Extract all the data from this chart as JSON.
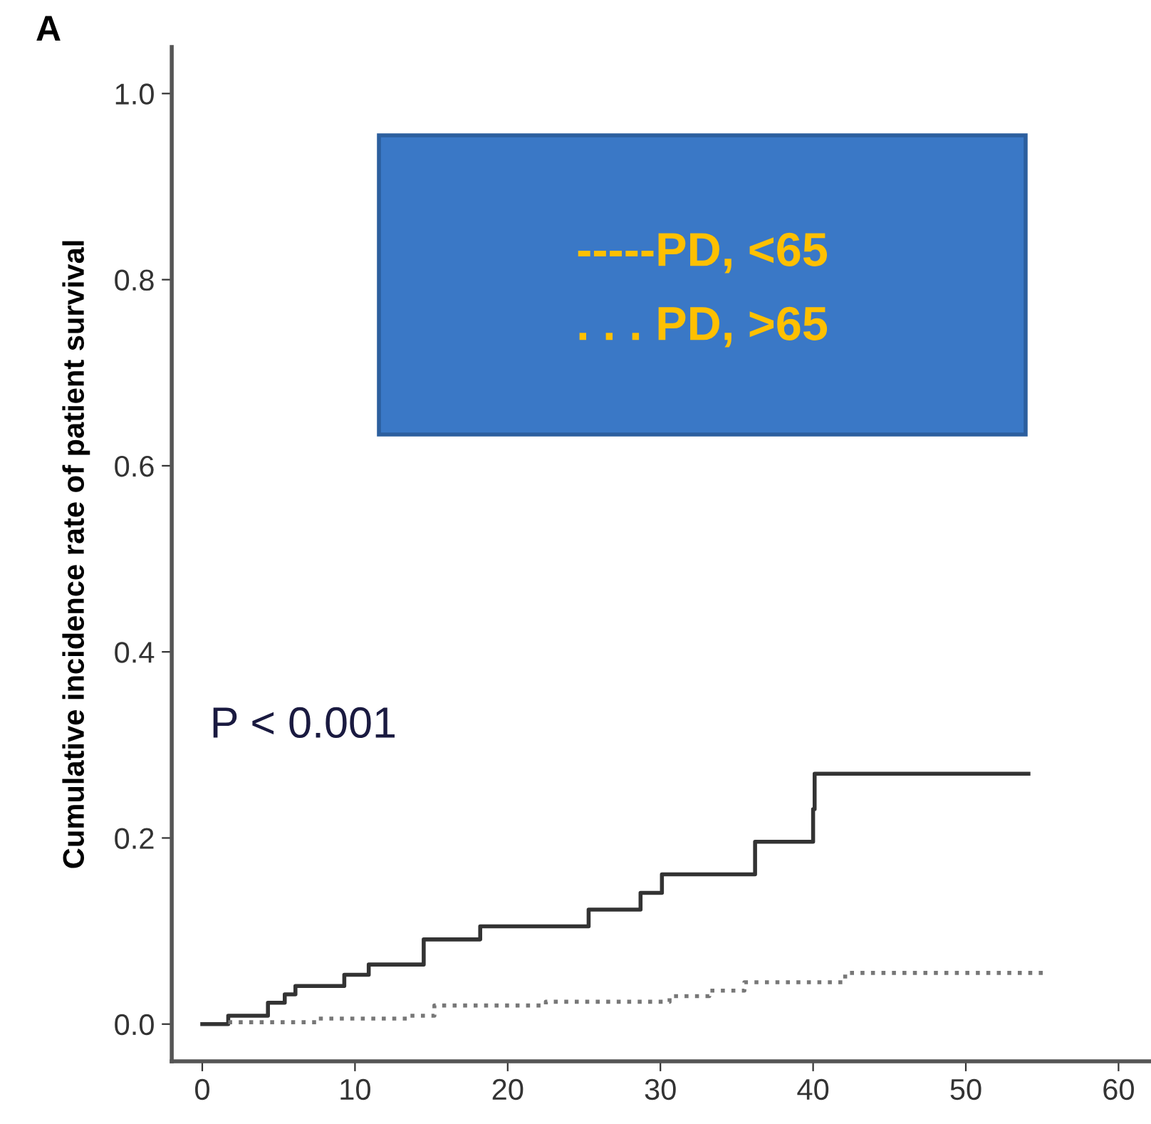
{
  "chart_data": {
    "type": "step",
    "ylabel": "Cumulative incidence rate of patient survival",
    "annotations": [
      "A",
      "P < 0.001",
      "-----PD, <65",
      ". . . PD, >65"
    ],
    "series": [
      {
        "color": "#333333",
        "line_style": "solid",
        "x": [
          0,
          1.7,
          4.3,
          5.4,
          6.1,
          9.3,
          10.9,
          14.5,
          18.2,
          25.3,
          28.7,
          30.1,
          36.2,
          40.0,
          40.1,
          54.1
        ],
        "values": [
          0,
          0.009,
          0.023,
          0.032,
          0.041,
          0.053,
          0.064,
          0.091,
          0.105,
          0.123,
          0.141,
          0.161,
          0.196,
          0.231,
          0.269,
          0.269
        ]
      },
      {
        "color": "#777777",
        "line_style": "dotted",
        "x": [
          1.7,
          7.6,
          13.5,
          15.2,
          22.5,
          30.6,
          33.2,
          35.5,
          42.1,
          55.1
        ],
        "values": [
          0.002,
          0.006,
          0.009,
          0.02,
          0.024,
          0.03,
          0.036,
          0.045,
          0.055,
          0.055
        ]
      }
    ],
    "xlim": [
      -2,
      62
    ],
    "xticks": [
      0,
      10,
      20,
      30,
      40,
      50,
      60
    ],
    "ylim": [
      -0.04,
      1.05
    ],
    "yticks": [
      {
        "value": 0,
        "label": "0.0"
      },
      {
        "value": 0.2,
        "label": "0.2"
      },
      {
        "value": 0.4,
        "label": "0.4"
      },
      {
        "value": 0.6,
        "label": "0.6"
      },
      {
        "value": 0.8,
        "label": "0.8"
      },
      {
        "value": 1,
        "label": "1.0"
      }
    ],
    "marker": "none",
    "grid": false,
    "legend": false
  }
}
